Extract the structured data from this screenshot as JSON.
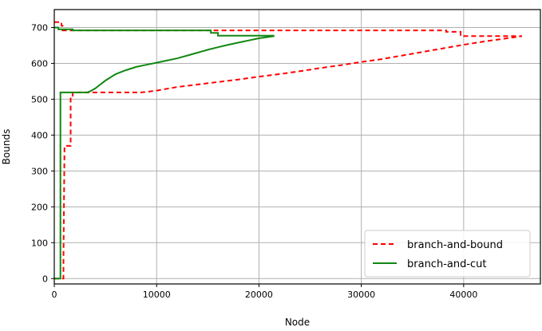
{
  "chart_data": {
    "type": "line",
    "xlabel": "Node",
    "ylabel": "Bounds",
    "xlim": [
      0,
      47500
    ],
    "ylim": [
      -15,
      750
    ],
    "xticks": [
      0,
      10000,
      20000,
      30000,
      40000
    ],
    "yticks": [
      0,
      100,
      200,
      300,
      400,
      500,
      600,
      700
    ],
    "grid": true,
    "legend_position": "lower-right",
    "series": [
      {
        "name": "branch-and-bound",
        "color": "#ff0000",
        "dash": "dashed",
        "values": [
          [
            0,
            715
          ],
          [
            700,
            715
          ],
          [
            700,
            705
          ],
          [
            800,
            705
          ],
          [
            800,
            692
          ],
          [
            38300,
            692
          ],
          [
            38300,
            688
          ],
          [
            39700,
            688
          ],
          [
            39700,
            676
          ],
          [
            45700,
            676
          ],
          [
            0,
            0
          ],
          [
            900,
            0
          ],
          [
            900,
            50
          ],
          [
            1000,
            370
          ],
          [
            1600,
            370
          ],
          [
            1600,
            510
          ],
          [
            1800,
            510
          ],
          [
            1800,
            519
          ],
          [
            8500,
            519
          ],
          [
            10000,
            524
          ],
          [
            12000,
            534
          ],
          [
            14000,
            541
          ],
          [
            16000,
            548
          ],
          [
            18000,
            555
          ],
          [
            20000,
            563
          ],
          [
            22000,
            570
          ],
          [
            24000,
            578
          ],
          [
            26000,
            587
          ],
          [
            28000,
            595
          ],
          [
            30000,
            604
          ],
          [
            32000,
            612
          ],
          [
            34000,
            622
          ],
          [
            36000,
            632
          ],
          [
            38000,
            642
          ],
          [
            40000,
            652
          ],
          [
            42000,
            661
          ],
          [
            44000,
            669
          ],
          [
            45700,
            676
          ]
        ]
      },
      {
        "name": "branch-and-cut",
        "color": "#118811",
        "dash": "solid",
        "values": [
          [
            0,
            700
          ],
          [
            400,
            700
          ],
          [
            400,
            695
          ],
          [
            1800,
            695
          ],
          [
            1800,
            692
          ],
          [
            15300,
            692
          ],
          [
            15300,
            685
          ],
          [
            16000,
            685
          ],
          [
            16000,
            677
          ],
          [
            21500,
            677
          ],
          [
            0,
            0
          ],
          [
            600,
            0
          ],
          [
            600,
            519
          ],
          [
            3200,
            519
          ],
          [
            3500,
            522
          ],
          [
            4000,
            530
          ],
          [
            5000,
            552
          ],
          [
            6000,
            570
          ],
          [
            7000,
            581
          ],
          [
            8000,
            590
          ],
          [
            9000,
            596
          ],
          [
            10000,
            602
          ],
          [
            11000,
            608
          ],
          [
            12000,
            614
          ],
          [
            13000,
            622
          ],
          [
            14000,
            630
          ],
          [
            15000,
            638
          ],
          [
            16000,
            645
          ],
          [
            17000,
            652
          ],
          [
            18000,
            658
          ],
          [
            19000,
            664
          ],
          [
            20000,
            670
          ],
          [
            21500,
            676
          ]
        ]
      }
    ]
  }
}
